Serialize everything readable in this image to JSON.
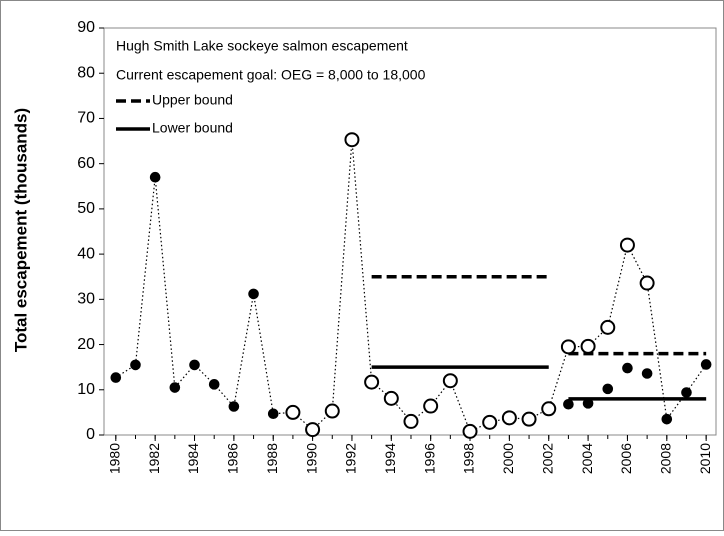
{
  "chart_data": {
    "type": "line",
    "title": "Hugh Smith Lake sockeye salmon escapement",
    "subtitle": "Current escapement goal: OEG = 8,000 to 18,000",
    "y_label": "Total escapement (thousands)",
    "x": [
      1980,
      1981,
      1982,
      1983,
      1984,
      1985,
      1986,
      1987,
      1988,
      1989,
      1990,
      1991,
      1992,
      1993,
      1994,
      1995,
      1996,
      1997,
      1998,
      1999,
      2000,
      2001,
      2002,
      2003,
      2004,
      2005,
      2006,
      2007,
      2008,
      2009,
      2010
    ],
    "series": [
      {
        "color": "#000000",
        "line": "dotted",
        "values": [
          12.7,
          15.5,
          57,
          10.5,
          15.5,
          11.2,
          6.3,
          31.2,
          4.7,
          5,
          1.2,
          5.3,
          65.3,
          11.7,
          8.1,
          3,
          6.4,
          12,
          0.8,
          2.8,
          3.8,
          3.5,
          5.8,
          19.5,
          19.6,
          23.8,
          42,
          33.6,
          3.5,
          9.4,
          15.6
        ],
        "markers": [
          "filled",
          "filled",
          "filled",
          "filled",
          "filled",
          "filled",
          "filled",
          "filled",
          "filled",
          "open",
          "open",
          "open",
          "open",
          "open",
          "open",
          "open",
          "open",
          "open",
          "open",
          "open",
          "open",
          "open",
          "open",
          "open",
          "open",
          "open",
          "open",
          "open",
          "filled",
          "filled",
          "filled"
        ]
      },
      {
        "color": "#000000",
        "line": "none",
        "values": [
          null,
          null,
          null,
          null,
          null,
          null,
          null,
          null,
          null,
          null,
          null,
          null,
          null,
          null,
          null,
          null,
          null,
          null,
          null,
          null,
          null,
          null,
          null,
          6.8,
          7,
          10.2,
          14.8,
          13.6,
          null,
          null,
          null
        ],
        "markers": [
          "filled",
          "filled",
          "filled",
          "filled",
          "filled",
          "filled",
          "filled",
          "filled",
          "filled",
          "filled",
          "filled",
          "filled",
          "filled",
          "filled",
          "filled",
          "filled",
          "filled",
          "filled",
          "filled",
          "filled",
          "filled",
          "filled",
          "filled",
          "filled",
          "filled",
          "filled",
          "filled",
          "filled",
          "filled",
          "filled",
          "filled"
        ]
      }
    ],
    "goal_lines": [
      {
        "name": "Upper bound",
        "style": "dashed",
        "segments": [
          {
            "x": [
              1993,
              2002
            ],
            "value": 35
          },
          {
            "x": [
              2003,
              2010
            ],
            "value": 18
          }
        ]
      },
      {
        "name": "Lower bound",
        "style": "solid",
        "segments": [
          {
            "x": [
              1993,
              2002
            ],
            "value": 15
          },
          {
            "x": [
              2003,
              2010
            ],
            "value": 8
          }
        ]
      }
    ],
    "xlim": [
      1979.4,
      2010.5
    ],
    "xticks": [
      1980,
      1982,
      1984,
      1986,
      1988,
      1990,
      1992,
      1994,
      1996,
      1998,
      2000,
      2002,
      2004,
      2006,
      2008,
      2010
    ],
    "ylim": [
      0,
      90
    ],
    "yticks": [
      0,
      10,
      20,
      30,
      40,
      50,
      60,
      70,
      80,
      90
    ],
    "grid": false
  }
}
